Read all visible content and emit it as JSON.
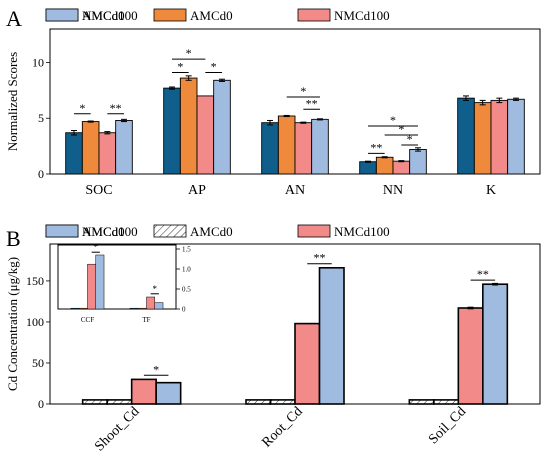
{
  "colors": {
    "NMCd0": "#0f5e8c",
    "AMCd0": "#ef8a3c",
    "NMCd100": "#f28a8a",
    "AMCd100": "#9fbbe0"
  },
  "panels": {
    "a": {
      "label": "A"
    },
    "b": {
      "label": "B"
    }
  },
  "chart_data": [
    {
      "id": "A",
      "type": "bar",
      "ylabel": "Normalized Scores",
      "xlabel": "",
      "ylim": [
        0,
        13
      ],
      "yticks": [
        0,
        5,
        10
      ],
      "ytick_labels": [
        "0",
        "5",
        "10"
      ],
      "legend": {
        "placement": "top",
        "entries": [
          "NMCd0",
          "AMCd0",
          "NMCd100",
          "AMCd100"
        ]
      },
      "categories": [
        "SOC",
        "AP",
        "AN",
        "NN",
        "K"
      ],
      "series": [
        {
          "name": "NMCd0",
          "values": [
            3.7,
            7.7,
            4.6,
            1.1,
            6.8
          ],
          "errors": [
            0.2,
            0.1,
            0.2,
            0.05,
            0.2
          ]
        },
        {
          "name": "AMCd0",
          "values": [
            4.7,
            8.6,
            5.2,
            1.5,
            6.4
          ],
          "errors": [
            0.05,
            0.2,
            0.05,
            0.05,
            0.2
          ]
        },
        {
          "name": "NMCd100",
          "values": [
            3.7,
            7.0,
            4.6,
            1.15,
            6.6
          ],
          "errors": [
            0.1,
            0.0,
            0.05,
            0.05,
            0.2
          ]
        },
        {
          "name": "AMCd100",
          "values": [
            4.8,
            8.4,
            4.9,
            2.2,
            6.7
          ],
          "errors": [
            0.1,
            0.1,
            0.05,
            0.15,
            0.1
          ]
        }
      ],
      "annotations": [
        {
          "text": "*",
          "cat": 0,
          "from": 0,
          "to": 1,
          "y": 5.4
        },
        {
          "text": "**",
          "cat": 0,
          "from": 2,
          "to": 3,
          "y": 5.4
        },
        {
          "text": "*",
          "cat": 1,
          "from": 0,
          "to": 2,
          "y": 10.3
        },
        {
          "text": "*",
          "cat": 1,
          "from": 0,
          "to": 1,
          "y": 9.1
        },
        {
          "text": "*",
          "cat": 1,
          "from": 2,
          "to": 3,
          "y": 9.1
        },
        {
          "text": "*",
          "cat": 2,
          "from": 1,
          "to": 3,
          "y": 6.9
        },
        {
          "text": "**",
          "cat": 2,
          "from": 2,
          "to": 3,
          "y": 5.8
        },
        {
          "text": "*",
          "cat": 3,
          "from": 0,
          "to": 3,
          "y": 4.3
        },
        {
          "text": "*",
          "cat": 3,
          "from": 1,
          "to": 3,
          "y": 3.5
        },
        {
          "text": "**",
          "cat": 3,
          "from": 0,
          "to": 1,
          "y": 1.85
        },
        {
          "text": "*",
          "cat": 3,
          "from": 2,
          "to": 3,
          "y": 2.6
        }
      ]
    },
    {
      "id": "B",
      "type": "bar",
      "ylabel": "Cd Concentration (μg/kg)",
      "xlabel": "",
      "ylim": [
        0,
        195
      ],
      "yticks": [
        0,
        50,
        100,
        150
      ],
      "ytick_labels": [
        "0",
        "50",
        "100",
        "150"
      ],
      "legend": {
        "placement": "top",
        "entries": [
          "NMCd0",
          "AMCd0",
          "NMCd100",
          "AMCd100"
        ]
      },
      "categories": [
        "Shoot_Cd",
        "Root_Cd",
        "Soil_Cd"
      ],
      "series": [
        {
          "name": "NMCd0",
          "values": [
            5,
            5,
            5
          ],
          "errors": [
            0,
            0,
            0
          ],
          "hatched": true
        },
        {
          "name": "AMCd0",
          "values": [
            5,
            5,
            5
          ],
          "errors": [
            0,
            0,
            0
          ],
          "hatched": true
        },
        {
          "name": "NMCd100",
          "values": [
            30,
            98,
            117
          ],
          "errors": [
            0,
            0,
            1
          ]
        },
        {
          "name": "AMCd100",
          "values": [
            26,
            166,
            146
          ],
          "errors": [
            0,
            0,
            1
          ]
        }
      ],
      "annotations": [
        {
          "text": "*",
          "cat": 0,
          "from": 2,
          "to": 3,
          "y": 35
        },
        {
          "text": "**",
          "cat": 1,
          "from": 2,
          "to": 3,
          "y": 171
        },
        {
          "text": "**",
          "cat": 2,
          "from": 2,
          "to": 3,
          "y": 151
        }
      ]
    },
    {
      "id": "B-inset",
      "type": "bar",
      "ylim": [
        0,
        1.6
      ],
      "yticks": [
        0,
        0.5,
        1.0,
        1.5
      ],
      "ytick_labels": [
        "0",
        "0.5",
        "1.0",
        "1.5"
      ],
      "categories": [
        "CCF",
        "TF"
      ],
      "series": [
        {
          "name": "NMCd0",
          "values": [
            0.02,
            0.02
          ]
        },
        {
          "name": "AMCd0",
          "values": [
            0.02,
            0.02
          ]
        },
        {
          "name": "NMCd100",
          "values": [
            1.12,
            0.3
          ]
        },
        {
          "name": "AMCd100",
          "values": [
            1.35,
            0.16
          ]
        }
      ],
      "annotations": [
        {
          "text": "*",
          "cat": 0,
          "from": 2,
          "to": 3,
          "y": 1.42
        },
        {
          "text": "*",
          "cat": 1,
          "from": 2,
          "to": 3,
          "y": 0.38
        }
      ]
    }
  ]
}
